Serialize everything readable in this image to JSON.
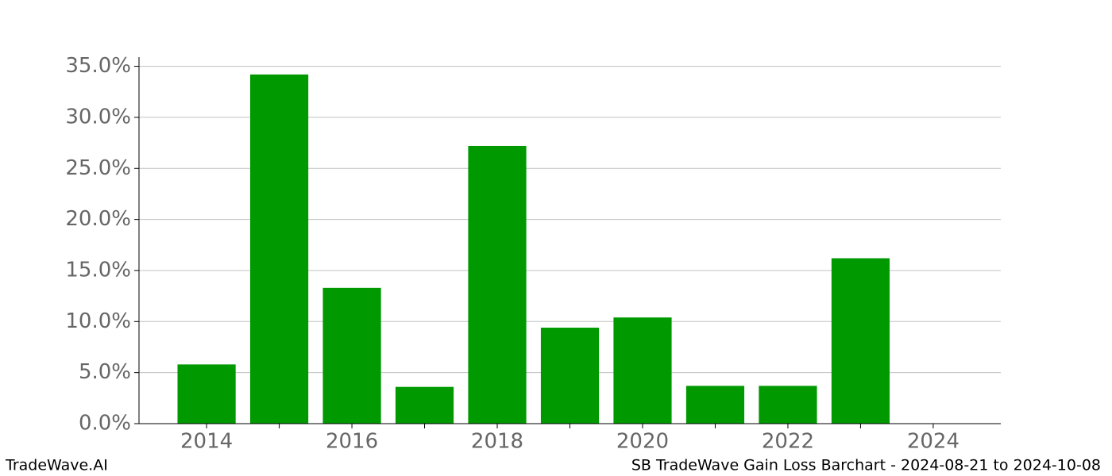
{
  "chart_data": {
    "type": "bar",
    "title": "SB TradeWave Gain Loss Barchart - 2024-08-21 to 2024-10-08",
    "source": "TradeWave.AI",
    "x": [
      2014,
      2015,
      2016,
      2017,
      2018,
      2019,
      2020,
      2021,
      2022,
      2023
    ],
    "values": [
      5.8,
      34.2,
      13.3,
      3.6,
      27.2,
      9.4,
      10.4,
      3.7,
      3.7,
      16.2
    ],
    "color": "#009900",
    "xlim": [
      2013.07,
      2024.93
    ],
    "xticks": [
      2014,
      2016,
      2018,
      2020,
      2022,
      2024
    ],
    "xminorticks": [
      2015,
      2017,
      2019,
      2021,
      2023
    ],
    "ylim": [
      0,
      35.9
    ],
    "yticks": [
      {
        "value": 0,
        "label": "0.0%"
      },
      {
        "value": 5,
        "label": "5.0%"
      },
      {
        "value": 10,
        "label": "10.0%"
      },
      {
        "value": 15,
        "label": "15.0%"
      },
      {
        "value": 20,
        "label": "20.0%"
      },
      {
        "value": 25,
        "label": "25.0%"
      },
      {
        "value": 30,
        "label": "30.0%"
      },
      {
        "value": 35,
        "label": "35.0%"
      }
    ],
    "grid": true
  }
}
